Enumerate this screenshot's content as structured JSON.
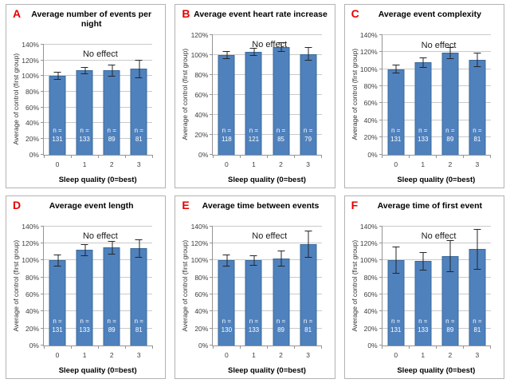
{
  "n_prefix": "n =",
  "colors": {
    "bar_fill": "#4f81bd",
    "bar_border": "#3a6a9b",
    "panel_letter": "#e60000",
    "gridline": "#cacaca",
    "axis": "#949494",
    "error_bar": "#262626",
    "n_label_text": "#ffffff"
  },
  "chart_data": [
    {
      "id": "A",
      "type": "bar",
      "title": "Average number of events per night",
      "categories": [
        "0",
        "1",
        "2",
        "3"
      ],
      "values": [
        100,
        107,
        107,
        109
      ],
      "errors": [
        5,
        5,
        8,
        12
      ],
      "n": [
        131,
        133,
        89,
        81
      ],
      "annotation": {
        "text": "No effect",
        "y_percent": 128
      },
      "xlabel": "Sleep quality (0=best)",
      "ylabel": "Average of control (first group)",
      "ylim": [
        0,
        140
      ],
      "ytick_step": 20,
      "ytick_format": "percent",
      "grid": true,
      "legend_position": "none"
    },
    {
      "id": "B",
      "type": "bar",
      "title": "Average event heart rate increase",
      "categories": [
        "0",
        "1",
        "2",
        "3"
      ],
      "values": [
        100,
        103,
        108,
        101
      ],
      "errors": [
        4,
        4,
        5,
        7
      ],
      "n": [
        118,
        121,
        85,
        79
      ],
      "annotation": {
        "text": "No effect",
        "y_percent": 110
      },
      "xlabel": "Sleep quality (0=best)",
      "ylabel": "Average of control (first group)",
      "ylim": [
        0,
        120
      ],
      "ytick_step": 20,
      "ytick_format": "percent",
      "grid": true,
      "legend_position": "none"
    },
    {
      "id": "C",
      "type": "bar",
      "title": "Average event complexity",
      "categories": [
        "0",
        "1",
        "2",
        "3"
      ],
      "values": [
        100,
        108,
        119,
        111
      ],
      "errors": [
        5,
        6,
        7,
        8
      ],
      "n": [
        131,
        133,
        89,
        81
      ],
      "annotation": {
        "text": "No effect",
        "y_percent": 128
      },
      "xlabel": "Sleep quality (0=best)",
      "ylabel": "Average of control (first group)",
      "ylim": [
        0,
        140
      ],
      "ytick_step": 20,
      "ytick_format": "percent",
      "grid": true,
      "legend_position": "none"
    },
    {
      "id": "D",
      "type": "bar",
      "title": "Average event length",
      "categories": [
        "0",
        "1",
        "2",
        "3"
      ],
      "values": [
        100,
        112,
        115,
        114
      ],
      "errors": [
        7,
        7,
        8,
        11
      ],
      "n": [
        131,
        133,
        89,
        81
      ],
      "annotation": {
        "text": "No effect",
        "y_percent": 128
      },
      "xlabel": "Sleep quality (0=best)",
      "ylabel": "Average of control (first group)",
      "ylim": [
        0,
        140
      ],
      "ytick_step": 20,
      "ytick_format": "percent",
      "grid": true,
      "legend_position": "none"
    },
    {
      "id": "E",
      "type": "bar",
      "title": "Average time between events",
      "categories": [
        "0",
        "1",
        "2",
        "3"
      ],
      "values": [
        100,
        100,
        102,
        119
      ],
      "errors": [
        7,
        6,
        9,
        16
      ],
      "n": [
        130,
        133,
        89,
        81
      ],
      "annotation": {
        "text": "No effect",
        "y_percent": 128
      },
      "xlabel": "Sleep quality (0=best)",
      "ylabel": "Average of control (first group)",
      "ylim": [
        0,
        140
      ],
      "ytick_step": 20,
      "ytick_format": "percent",
      "grid": true,
      "legend_position": "none"
    },
    {
      "id": "F",
      "type": "bar",
      "title": "Average time of first event",
      "categories": [
        "0",
        "1",
        "2",
        "3"
      ],
      "values": [
        100,
        99,
        105,
        113
      ],
      "errors": [
        16,
        11,
        19,
        24
      ],
      "n": [
        131,
        133,
        89,
        81
      ],
      "annotation": {
        "text": "No effect",
        "y_percent": 128
      },
      "xlabel": "Sleep quality (0=best)",
      "ylabel": "Average of control (first group)",
      "ylim": [
        0,
        140
      ],
      "ytick_step": 20,
      "ytick_format": "percent",
      "grid": true,
      "legend_position": "none"
    }
  ]
}
